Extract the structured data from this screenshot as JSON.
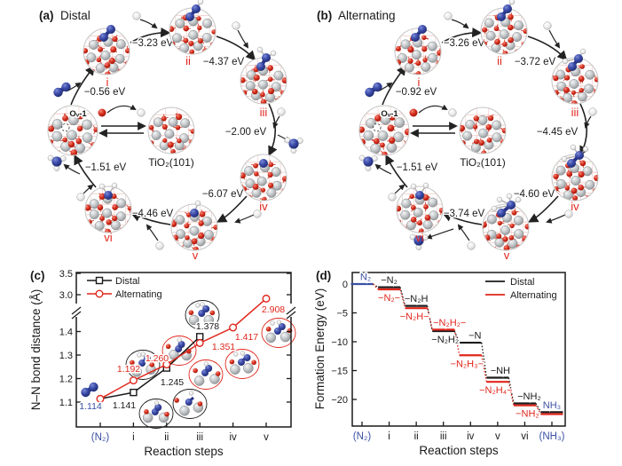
{
  "figure": {
    "colors": {
      "black": "#1a1a1a",
      "red": "#e0261c",
      "blue_text": "#3a50a3",
      "blue_atom": "#2d3a96",
      "ti_gray": "#b9bcbe",
      "o_red": "#cf2015",
      "h_white": "#f2f2f2"
    },
    "panel_a": {
      "tag": "(a)",
      "title": "Distal",
      "surface_label": "TiO₂(101)",
      "vacancy_label": "Oᵥ-1",
      "incoming_molecule": "N₂",
      "released_molecules": [
        "NH₃",
        "NH₃"
      ],
      "node_ids": [
        "i",
        "ii",
        "iii",
        "iv",
        "v",
        "vi"
      ],
      "adsorbates": [
        "N2",
        "N2H",
        "NNH2",
        "N",
        "NH",
        "NH2"
      ],
      "arrow_energies": [
        "−0.56 eV",
        "−3.23 eV",
        "−4.37 eV",
        "−2.00 eV",
        "−6.07 eV",
        "−4.46 eV",
        "−1.51 eV"
      ]
    },
    "panel_b": {
      "tag": "(b)",
      "title": "Alternating",
      "surface_label": "TiO₂(101)",
      "vacancy_label": "Oᵥ-1",
      "incoming_molecule": "N₂",
      "released_molecules": [
        "NH₃",
        "NH₃"
      ],
      "node_ids": [
        "i",
        "ii",
        "iii",
        "iv",
        "v",
        "vi"
      ],
      "adsorbates": [
        "N2",
        "N2H",
        "N2H2",
        "N2H3",
        "N2H4",
        "NH2"
      ],
      "arrow_energies": [
        "−0.92 eV",
        "−3.26 eV",
        "−3.72 eV",
        "−4.45 eV",
        "−4.60 eV",
        "−3.74 eV",
        "−1.51 eV"
      ]
    }
  },
  "chart_data": [
    {
      "id": "c",
      "tag": "(c)",
      "type": "line",
      "xlabel": "Reaction steps",
      "ylabel": "N–N bond distance (Å)",
      "categories": [
        "(N₂)",
        "i",
        "ii",
        "iii",
        "iv",
        "v"
      ],
      "category_colors": [
        "blue",
        "black",
        "black",
        "black",
        "black",
        "black"
      ],
      "y_axis": {
        "broken": true,
        "low_ticks": [
          "1.1",
          "1.2",
          "1.3",
          "1.4"
        ],
        "high_ticks": [
          "3.0",
          "3.5"
        ],
        "low_range": [
          1.1,
          1.45
        ],
        "high_range": [
          2.9,
          3.5
        ]
      },
      "legend": {
        "position": "top-left",
        "entries": [
          "Distal",
          "Alternating"
        ]
      },
      "shared_start_label": {
        "text": "1.114",
        "color": "blue"
      },
      "series": [
        {
          "name": "Distal",
          "color_key": "black",
          "marker": "square",
          "values": [
            1.114,
            1.141,
            1.245,
            1.378,
            null,
            null
          ],
          "point_labels": [
            null,
            "1.141",
            "1.245",
            "1.378",
            null,
            null
          ]
        },
        {
          "name": "Alternating",
          "color_key": "red",
          "marker": "circle",
          "values": [
            1.114,
            1.192,
            1.26,
            1.351,
            1.417,
            2.908
          ],
          "point_labels": [
            null,
            "1.192",
            "1.260",
            "1.351",
            "1.417",
            "2.908"
          ]
        }
      ]
    },
    {
      "id": "d",
      "tag": "(d)",
      "type": "step",
      "xlabel": "Reaction steps",
      "ylabel": "Formation Energy (eV)",
      "categories": [
        "(N₂)",
        "i",
        "ii",
        "iii",
        "iv",
        "v",
        "vi",
        "(NH₃)"
      ],
      "category_colors": [
        "blue",
        "black",
        "black",
        "black",
        "black",
        "black",
        "black",
        "blue"
      ],
      "yticks": [
        "0",
        "−5",
        "−10",
        "−15",
        "−20"
      ],
      "ytick_values": [
        0,
        -5,
        -10,
        -15,
        -20
      ],
      "ylim": [
        -24.5,
        1.8
      ],
      "legend": {
        "position": "top-right",
        "entries": [
          "Distal",
          "Alternating"
        ]
      },
      "series": [
        {
          "name": "Distal",
          "color_key": "black",
          "values": [
            0,
            -0.56,
            -3.79,
            -8.16,
            -10.16,
            -16.23,
            -20.69,
            -22.2
          ],
          "step_labels": [
            {
              "text": "N₂",
              "side": "above",
              "color": "blue"
            },
            {
              "text": "−N₂",
              "side": "above"
            },
            {
              "text": "−N₂H",
              "side": "above"
            },
            {
              "text": "−N₂H₂",
              "side": "below"
            },
            {
              "text": "−N",
              "side": "above"
            },
            {
              "text": "−NH",
              "side": "above"
            },
            {
              "text": "−NH₂",
              "side": "above"
            },
            {
              "text": "NH₃",
              "side": "above",
              "color": "blue"
            }
          ]
        },
        {
          "name": "Alternating",
          "color_key": "red",
          "values": [
            0,
            -0.92,
            -4.18,
            -7.9,
            -12.35,
            -16.95,
            -20.69,
            -22.2
          ],
          "step_labels": [
            null,
            {
              "text": "−N₂−",
              "side": "below"
            },
            {
              "text": "−N₂H−",
              "side": "below"
            },
            {
              "text": "−N₂H₂−",
              "side": "above"
            },
            {
              "text": "−N₂H₃−",
              "side": "below"
            },
            {
              "text": "−N₂H₄−",
              "side": "below"
            },
            {
              "text": "−NH₂",
              "side": "below"
            },
            null
          ]
        }
      ]
    }
  ]
}
